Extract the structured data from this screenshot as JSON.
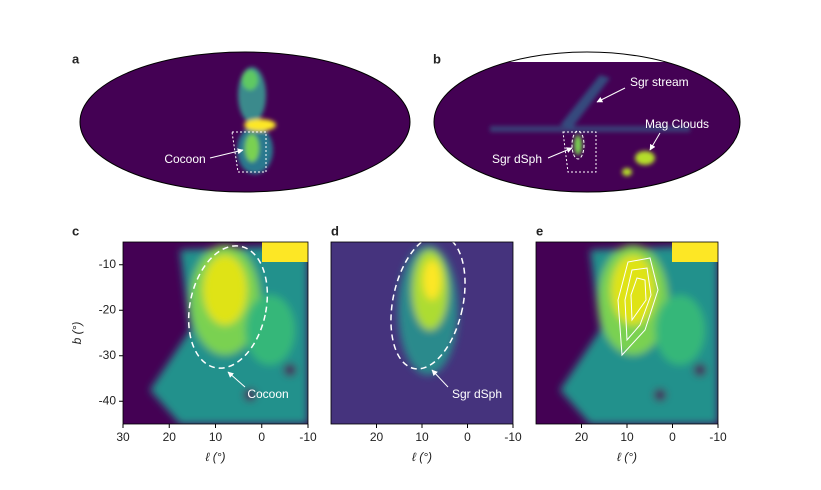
{
  "chart_data": [
    {
      "type": "skymap",
      "panel_label": "a",
      "annotations": [
        "Cocoon"
      ]
    },
    {
      "type": "skymap",
      "panel_label": "b",
      "annotations": [
        "Sgr stream",
        "Mag Clouds",
        "Sgr dSph"
      ]
    },
    {
      "type": "heatmap",
      "panel_label": "c",
      "xlabel": "ℓ (°)",
      "ylabel": "b (°)",
      "xlim": [
        30,
        -10
      ],
      "xticks": [
        30,
        20,
        10,
        0,
        -10
      ],
      "ylim": [
        -45,
        -5
      ],
      "yticks": [
        -10,
        -20,
        -30,
        -40
      ],
      "annotations": [
        "Cocoon"
      ]
    },
    {
      "type": "heatmap",
      "panel_label": "d",
      "xlabel": "ℓ (°)",
      "xlim": [
        30,
        -10
      ],
      "xticks": [
        20,
        10,
        0,
        -10
      ],
      "annotations": [
        "Sgr dSph"
      ]
    },
    {
      "type": "heatmap",
      "panel_label": "e",
      "xlabel": "ℓ (°)",
      "xlim": [
        30,
        -10
      ],
      "xticks": [
        20,
        10,
        0,
        -10
      ]
    }
  ]
}
